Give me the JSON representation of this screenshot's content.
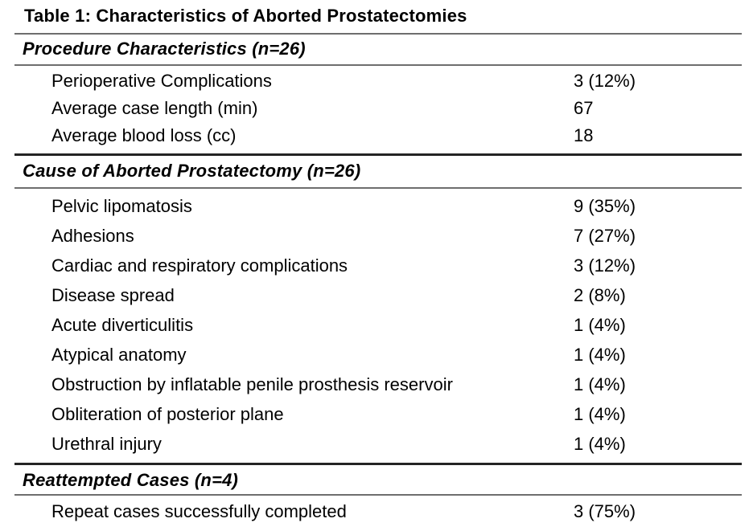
{
  "table": {
    "title": "Table 1: Characteristics of Aborted Prostatectomies",
    "sections": [
      {
        "header": "Procedure Characteristics (n=26)",
        "rows": [
          {
            "label": "Perioperative Complications",
            "value": "3 (12%)"
          },
          {
            "label": "Average case length (min)",
            "value": "67"
          },
          {
            "label": "Average blood loss (cc)",
            "value": "18"
          }
        ]
      },
      {
        "header": "Cause of Aborted Prostatectomy (n=26)",
        "rows": [
          {
            "label": "Pelvic lipomatosis",
            "value": "9 (35%)"
          },
          {
            "label": "Adhesions",
            "value": "7 (27%)"
          },
          {
            "label": "Cardiac and respiratory complications",
            "value": "3 (12%)"
          },
          {
            "label": "Disease spread",
            "value": "2 (8%)"
          },
          {
            "label": "Acute diverticulitis",
            "value": "1 (4%)"
          },
          {
            "label": "Atypical anatomy",
            "value": "1 (4%)"
          },
          {
            "label": "Obstruction by inflatable penile prosthesis reservoir",
            "value": "1 (4%)"
          },
          {
            "label": "Obliteration of posterior plane",
            "value": "1 (4%)"
          },
          {
            "label": "Urethral injury",
            "value": "1 (4%)"
          }
        ]
      },
      {
        "header": "Reattempted Cases (n=4)",
        "rows": [
          {
            "label": "Repeat cases successfully completed",
            "value": "3 (75%)"
          }
        ]
      }
    ],
    "colors": {
      "text": "#000000",
      "rule_thin": "#6e6e6e",
      "rule_thick": "#242424",
      "background": "#ffffff"
    }
  }
}
